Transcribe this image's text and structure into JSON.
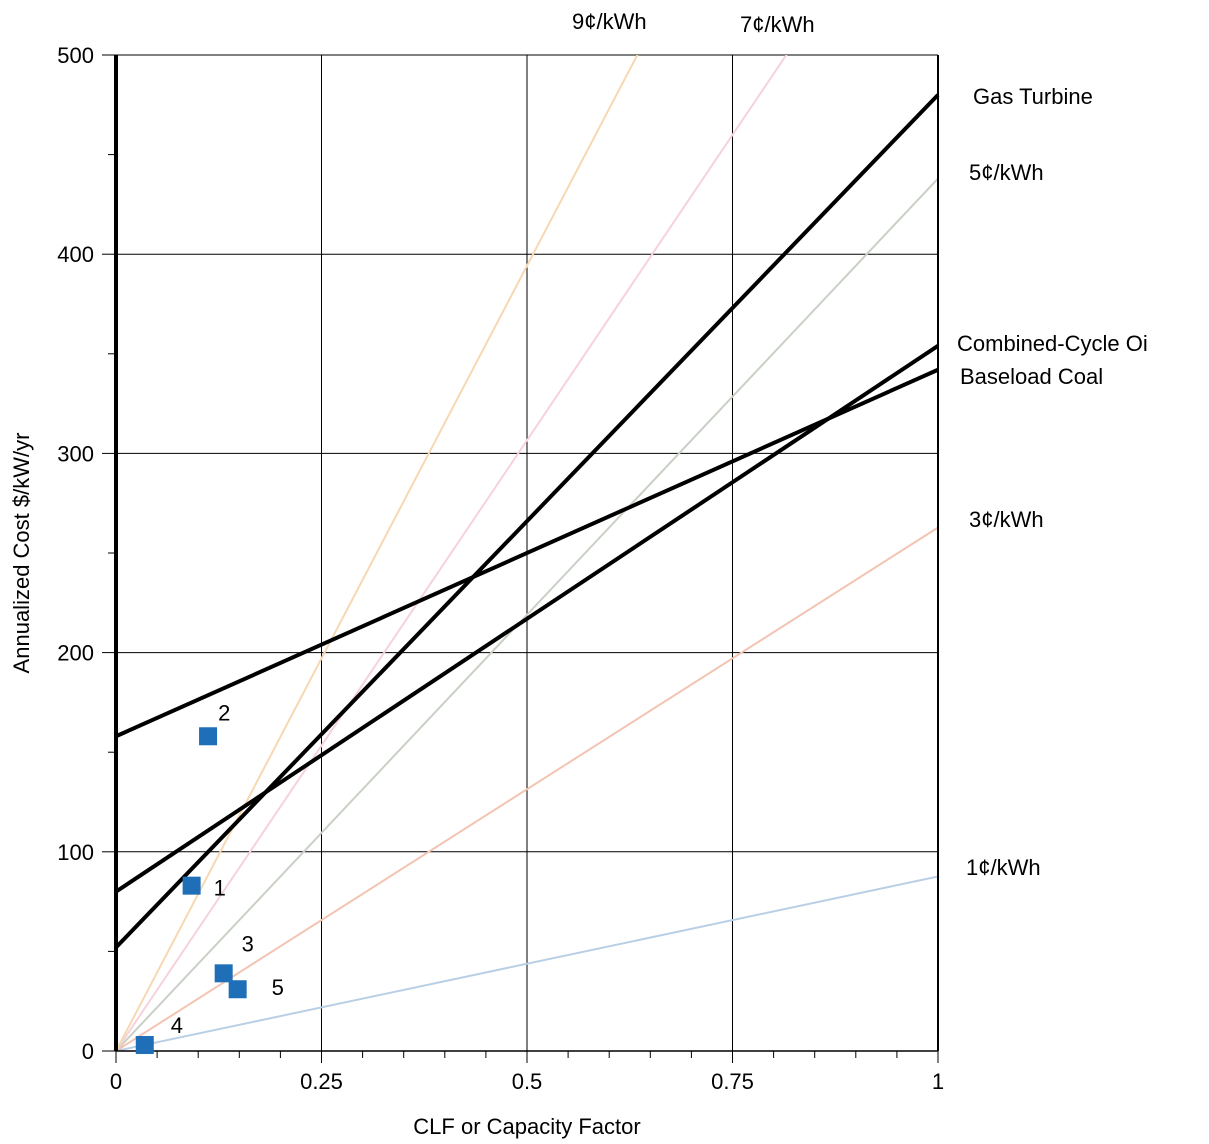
{
  "chart_data": {
    "type": "line",
    "xlabel": "CLF or Capacity Factor",
    "ylabel": "Annualized Cost $/kW/yr",
    "xlim": [
      0,
      1
    ],
    "ylim": [
      0,
      500
    ],
    "x_ticks": [
      0,
      0.25,
      0.5,
      0.75,
      1
    ],
    "x_tick_labels": [
      "0",
      "0.25",
      "0.5",
      "0.75",
      "1"
    ],
    "y_ticks": [
      0,
      100,
      200,
      300,
      400,
      500
    ],
    "y_tick_labels": [
      "0",
      "100",
      "200",
      "300",
      "400",
      "500"
    ],
    "grid": true,
    "cost_lines": [
      {
        "name": "Gas Turbine",
        "intercept": 52,
        "slope": 428,
        "color": "#000000"
      },
      {
        "name": "Combined-Cycle Oi",
        "intercept": 80,
        "slope": 274,
        "color": "#000000"
      },
      {
        "name": "Baseload Coal",
        "intercept": 158,
        "slope": 184,
        "color": "#000000"
      }
    ],
    "rate_lines": [
      {
        "name": "1¢/kWh",
        "rate": 87.6,
        "color": "#b9cfe6"
      },
      {
        "name": "3¢/kWh",
        "rate": 262.8,
        "color": "#f3c4b2"
      },
      {
        "name": "5¢/kWh",
        "rate": 438,
        "color": "#c9d0c6"
      },
      {
        "name": "7¢/kWh",
        "rate": 613.2,
        "color": "#f5d2dc"
      },
      {
        "name": "9¢/kWh",
        "rate": 788.4,
        "color": "#f7d8b3"
      }
    ],
    "points": [
      {
        "label": "1",
        "x": 0.092,
        "y": 83
      },
      {
        "label": "2",
        "x": 0.112,
        "y": 158
      },
      {
        "label": "3",
        "x": 0.131,
        "y": 39
      },
      {
        "label": "4",
        "x": 0.035,
        "y": 3
      },
      {
        "label": "5",
        "x": 0.148,
        "y": 31
      }
    ],
    "point_color": "#1f6fb8",
    "annotations": {
      "gas_turbine": "Gas Turbine",
      "combined_cycle": "Combined-Cycle Oi",
      "baseload_coal": "Baseload Coal",
      "rate_1": "1¢/kWh",
      "rate_3": "3¢/kWh",
      "rate_5": "5¢/kWh",
      "rate_7": "7¢/kWh",
      "rate_9": "9¢/kWh"
    }
  }
}
